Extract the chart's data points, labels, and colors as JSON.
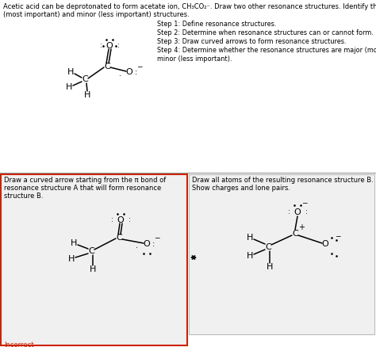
{
  "title_line1": "Acetic acid can be deprotonated to form acetate ion, CH₃CO₂⁻. Draw two other resonance structures. Identify the major",
  "title_line2": "(most important) and minor (less important) structures.",
  "step1": "Step 1: Define resonance structures.",
  "step2": "Step 2: Determine when resonance structures can or cannot form.",
  "step3": "Step 3: Draw curved arrows to form resonance structures.",
  "step4a": "Step 4: Determine whether the resonance structures are major (more important) or",
  "step4b": "minor (less important).",
  "box1_line1": "Draw a curved arrow starting from the π bond of",
  "box1_line2": "resonance structure A that will form resonance",
  "box1_line3": "structure B.",
  "box2_line1": "Draw all atoms of the resulting resonance structure B.",
  "box2_line2": "Show charges and lone pairs.",
  "incorrect": "Incorrect",
  "red": "#cc2200",
  "gray_border": "#bbbbbb",
  "box_bg": "#f0f0f0",
  "white": "#ffffff",
  "divider": "#999999"
}
